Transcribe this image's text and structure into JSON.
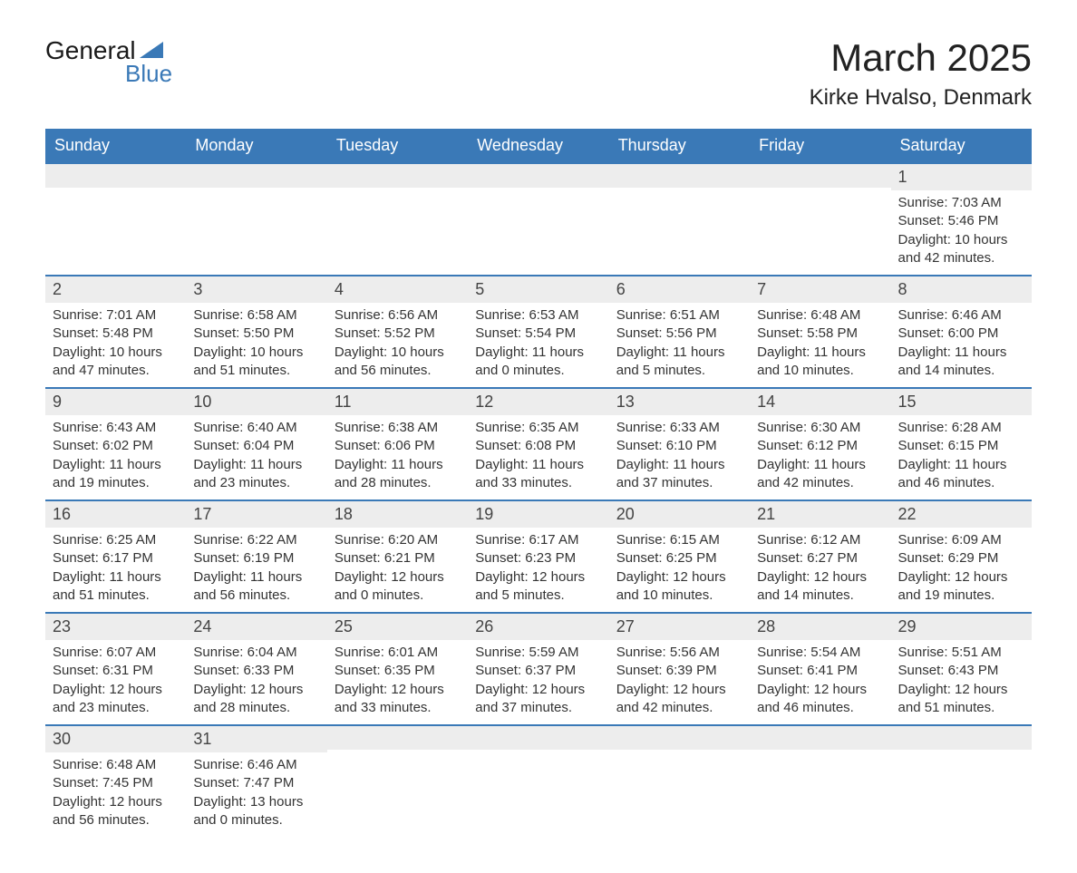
{
  "brand": {
    "part1": "General",
    "part2": "Blue"
  },
  "title": "March 2025",
  "location": "Kirke Hvalso, Denmark",
  "colors": {
    "header_bg": "#3a79b7",
    "header_text": "#ffffff",
    "daynum_bg": "#ededed",
    "row_divider": "#3a79b7",
    "text": "#333333",
    "logo_accent": "#3a79b7"
  },
  "layout": {
    "columns": 7,
    "rows": 6,
    "title_fontsize": 42,
    "location_fontsize": 24,
    "header_fontsize": 18,
    "daynum_fontsize": 18,
    "body_fontsize": 15
  },
  "weekdays": [
    "Sunday",
    "Monday",
    "Tuesday",
    "Wednesday",
    "Thursday",
    "Friday",
    "Saturday"
  ],
  "weeks": [
    [
      null,
      null,
      null,
      null,
      null,
      null,
      {
        "n": "1",
        "sunrise": "Sunrise: 7:03 AM",
        "sunset": "Sunset: 5:46 PM",
        "daylight": "Daylight: 10 hours and 42 minutes."
      }
    ],
    [
      {
        "n": "2",
        "sunrise": "Sunrise: 7:01 AM",
        "sunset": "Sunset: 5:48 PM",
        "daylight": "Daylight: 10 hours and 47 minutes."
      },
      {
        "n": "3",
        "sunrise": "Sunrise: 6:58 AM",
        "sunset": "Sunset: 5:50 PM",
        "daylight": "Daylight: 10 hours and 51 minutes."
      },
      {
        "n": "4",
        "sunrise": "Sunrise: 6:56 AM",
        "sunset": "Sunset: 5:52 PM",
        "daylight": "Daylight: 10 hours and 56 minutes."
      },
      {
        "n": "5",
        "sunrise": "Sunrise: 6:53 AM",
        "sunset": "Sunset: 5:54 PM",
        "daylight": "Daylight: 11 hours and 0 minutes."
      },
      {
        "n": "6",
        "sunrise": "Sunrise: 6:51 AM",
        "sunset": "Sunset: 5:56 PM",
        "daylight": "Daylight: 11 hours and 5 minutes."
      },
      {
        "n": "7",
        "sunrise": "Sunrise: 6:48 AM",
        "sunset": "Sunset: 5:58 PM",
        "daylight": "Daylight: 11 hours and 10 minutes."
      },
      {
        "n": "8",
        "sunrise": "Sunrise: 6:46 AM",
        "sunset": "Sunset: 6:00 PM",
        "daylight": "Daylight: 11 hours and 14 minutes."
      }
    ],
    [
      {
        "n": "9",
        "sunrise": "Sunrise: 6:43 AM",
        "sunset": "Sunset: 6:02 PM",
        "daylight": "Daylight: 11 hours and 19 minutes."
      },
      {
        "n": "10",
        "sunrise": "Sunrise: 6:40 AM",
        "sunset": "Sunset: 6:04 PM",
        "daylight": "Daylight: 11 hours and 23 minutes."
      },
      {
        "n": "11",
        "sunrise": "Sunrise: 6:38 AM",
        "sunset": "Sunset: 6:06 PM",
        "daylight": "Daylight: 11 hours and 28 minutes."
      },
      {
        "n": "12",
        "sunrise": "Sunrise: 6:35 AM",
        "sunset": "Sunset: 6:08 PM",
        "daylight": "Daylight: 11 hours and 33 minutes."
      },
      {
        "n": "13",
        "sunrise": "Sunrise: 6:33 AM",
        "sunset": "Sunset: 6:10 PM",
        "daylight": "Daylight: 11 hours and 37 minutes."
      },
      {
        "n": "14",
        "sunrise": "Sunrise: 6:30 AM",
        "sunset": "Sunset: 6:12 PM",
        "daylight": "Daylight: 11 hours and 42 minutes."
      },
      {
        "n": "15",
        "sunrise": "Sunrise: 6:28 AM",
        "sunset": "Sunset: 6:15 PM",
        "daylight": "Daylight: 11 hours and 46 minutes."
      }
    ],
    [
      {
        "n": "16",
        "sunrise": "Sunrise: 6:25 AM",
        "sunset": "Sunset: 6:17 PM",
        "daylight": "Daylight: 11 hours and 51 minutes."
      },
      {
        "n": "17",
        "sunrise": "Sunrise: 6:22 AM",
        "sunset": "Sunset: 6:19 PM",
        "daylight": "Daylight: 11 hours and 56 minutes."
      },
      {
        "n": "18",
        "sunrise": "Sunrise: 6:20 AM",
        "sunset": "Sunset: 6:21 PM",
        "daylight": "Daylight: 12 hours and 0 minutes."
      },
      {
        "n": "19",
        "sunrise": "Sunrise: 6:17 AM",
        "sunset": "Sunset: 6:23 PM",
        "daylight": "Daylight: 12 hours and 5 minutes."
      },
      {
        "n": "20",
        "sunrise": "Sunrise: 6:15 AM",
        "sunset": "Sunset: 6:25 PM",
        "daylight": "Daylight: 12 hours and 10 minutes."
      },
      {
        "n": "21",
        "sunrise": "Sunrise: 6:12 AM",
        "sunset": "Sunset: 6:27 PM",
        "daylight": "Daylight: 12 hours and 14 minutes."
      },
      {
        "n": "22",
        "sunrise": "Sunrise: 6:09 AM",
        "sunset": "Sunset: 6:29 PM",
        "daylight": "Daylight: 12 hours and 19 minutes."
      }
    ],
    [
      {
        "n": "23",
        "sunrise": "Sunrise: 6:07 AM",
        "sunset": "Sunset: 6:31 PM",
        "daylight": "Daylight: 12 hours and 23 minutes."
      },
      {
        "n": "24",
        "sunrise": "Sunrise: 6:04 AM",
        "sunset": "Sunset: 6:33 PM",
        "daylight": "Daylight: 12 hours and 28 minutes."
      },
      {
        "n": "25",
        "sunrise": "Sunrise: 6:01 AM",
        "sunset": "Sunset: 6:35 PM",
        "daylight": "Daylight: 12 hours and 33 minutes."
      },
      {
        "n": "26",
        "sunrise": "Sunrise: 5:59 AM",
        "sunset": "Sunset: 6:37 PM",
        "daylight": "Daylight: 12 hours and 37 minutes."
      },
      {
        "n": "27",
        "sunrise": "Sunrise: 5:56 AM",
        "sunset": "Sunset: 6:39 PM",
        "daylight": "Daylight: 12 hours and 42 minutes."
      },
      {
        "n": "28",
        "sunrise": "Sunrise: 5:54 AM",
        "sunset": "Sunset: 6:41 PM",
        "daylight": "Daylight: 12 hours and 46 minutes."
      },
      {
        "n": "29",
        "sunrise": "Sunrise: 5:51 AM",
        "sunset": "Sunset: 6:43 PM",
        "daylight": "Daylight: 12 hours and 51 minutes."
      }
    ],
    [
      {
        "n": "30",
        "sunrise": "Sunrise: 6:48 AM",
        "sunset": "Sunset: 7:45 PM",
        "daylight": "Daylight: 12 hours and 56 minutes."
      },
      {
        "n": "31",
        "sunrise": "Sunrise: 6:46 AM",
        "sunset": "Sunset: 7:47 PM",
        "daylight": "Daylight: 13 hours and 0 minutes."
      },
      null,
      null,
      null,
      null,
      null
    ]
  ]
}
